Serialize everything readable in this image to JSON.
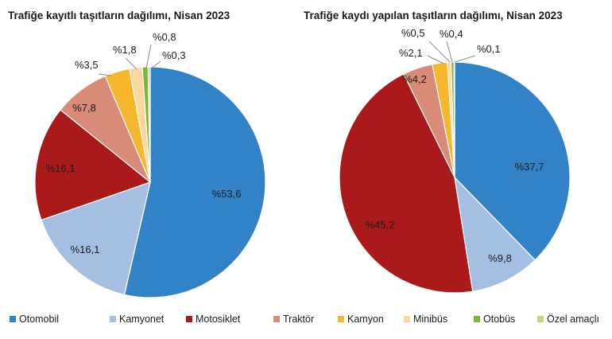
{
  "chart_data": [
    {
      "type": "pie",
      "title": "Trafiğe kayıtlı taşıtların dağılımı, Nisan 2023",
      "categories": [
        "Otomobil",
        "Kamyonet",
        "Motosiklet",
        "Traktör",
        "Kamyon",
        "Minibüs",
        "Otobüs",
        "Özel amaçlı"
      ],
      "values": [
        53.6,
        16.1,
        16.1,
        7.8,
        3.5,
        1.8,
        0.8,
        0.3
      ],
      "labels": [
        "%53,6",
        "%16,1",
        "%16,1",
        "%7,8",
        "%3,5",
        "%1,8",
        "%0,8",
        "%0,3"
      ]
    },
    {
      "type": "pie",
      "title": "Trafiğe kaydı yapılan taşıtların dağılımı, Nisan 2023",
      "categories": [
        "Otomobil",
        "Kamyonet",
        "Motosiklet",
        "Traktör",
        "Kamyon",
        "Minibüs",
        "Otobüs",
        "Özel amaçlı"
      ],
      "values": [
        37.7,
        9.8,
        45.2,
        4.2,
        2.1,
        0.5,
        0.4,
        0.1
      ],
      "labels": [
        "%37,7",
        "%9,8",
        "%45,2",
        "%4,2",
        "%2,1",
        "%0,5",
        "%0,4",
        "%0,1"
      ]
    }
  ],
  "legend": {
    "placement": "bottom",
    "items": [
      "Otomobil",
      "Kamyonet",
      "Motosiklet",
      "Traktör",
      "Kamyon",
      "Minibüs",
      "Otobüs",
      "Özel amaçlı"
    ]
  },
  "colors": [
    "#3282c8",
    "#a5bfe2",
    "#ab1a1a",
    "#d98b77",
    "#f7b72d",
    "#fbd8a1",
    "#7fb53c",
    "#c1d88a"
  ]
}
